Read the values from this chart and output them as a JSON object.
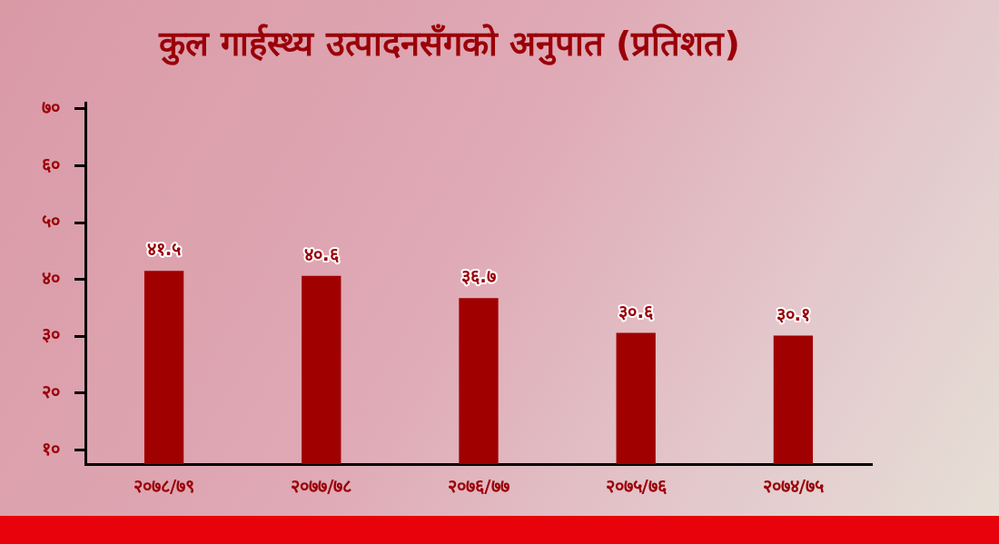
{
  "chart_data": {
    "type": "bar",
    "title": "कुल गार्हस्थ्य उत्पादनसँगको अनुपात (प्रतिशत)",
    "categories": [
      "२०७८/७९",
      "२०७७/७८",
      "२०७६/७७",
      "२०७५/७६",
      "२०७४/७५"
    ],
    "values": [
      41.5,
      40.6,
      36.7,
      30.6,
      30.1
    ],
    "value_labels": [
      "४१.५",
      "४०.६",
      "३६.७",
      "३०.६",
      "३०.१"
    ],
    "color": "#a00000",
    "ylim": [
      7.5,
      71
    ],
    "yticks": [
      {
        "value": 10,
        "label": "१०"
      },
      {
        "value": 20,
        "label": "२०"
      },
      {
        "value": 30,
        "label": "३०"
      },
      {
        "value": 40,
        "label": "४०"
      },
      {
        "value": 50,
        "label": "५०"
      },
      {
        "value": 60,
        "label": "६०"
      },
      {
        "value": 70,
        "label": "७०"
      }
    ],
    "grid": false,
    "legend": false
  }
}
